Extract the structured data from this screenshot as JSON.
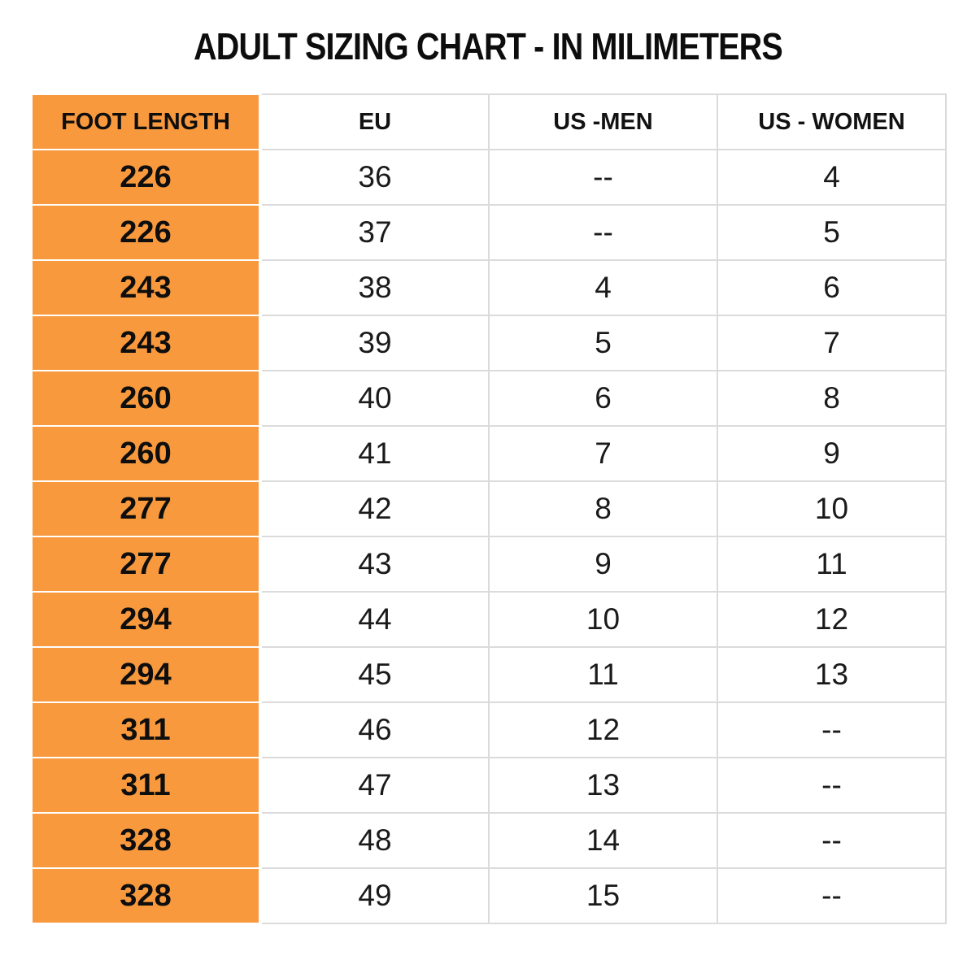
{
  "title": "ADULT SIZING CHART - IN MILIMETERS",
  "colors": {
    "accent_orange": "#f8993d",
    "grid_gray": "#dbdbdb",
    "text_black": "#121212",
    "background": "#ffffff"
  },
  "chart_data": {
    "type": "table",
    "title": "ADULT SIZING CHART - IN MILIMETERS",
    "columns": [
      "FOOT LENGTH",
      "EU",
      "US -MEN",
      "US - WOMEN"
    ],
    "rows": [
      [
        "226",
        "36",
        "--",
        "4"
      ],
      [
        "226",
        "37",
        "--",
        "5"
      ],
      [
        "243",
        "38",
        "4",
        "6"
      ],
      [
        "243",
        "39",
        "5",
        "7"
      ],
      [
        "260",
        "40",
        "6",
        "8"
      ],
      [
        "260",
        "41",
        "7",
        "9"
      ],
      [
        "277",
        "42",
        "8",
        "10"
      ],
      [
        "277",
        "43",
        "9",
        "11"
      ],
      [
        "294",
        "44",
        "10",
        "12"
      ],
      [
        "294",
        "45",
        "11",
        "13"
      ],
      [
        "311",
        "46",
        "12",
        "--"
      ],
      [
        "311",
        "47",
        "13",
        "--"
      ],
      [
        "328",
        "48",
        "14",
        "--"
      ],
      [
        "328",
        "49",
        "15",
        "--"
      ]
    ],
    "notes": {
      "missing_value_marker": "--",
      "unit": "milimeters",
      "first_column_highlight": "#f8993d"
    }
  }
}
